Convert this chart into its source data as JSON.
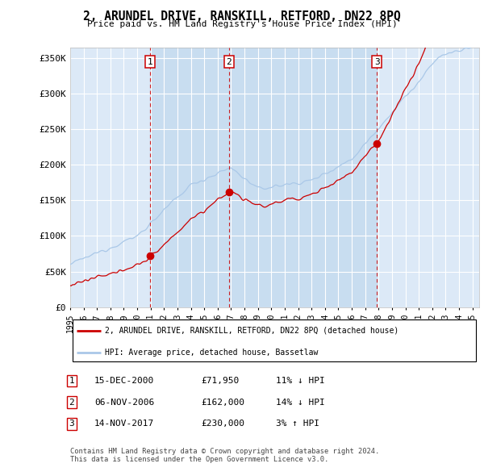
{
  "title": "2, ARUNDEL DRIVE, RANSKILL, RETFORD, DN22 8PQ",
  "subtitle": "Price paid vs. HM Land Registry's House Price Index (HPI)",
  "ylabel_ticks": [
    "£0",
    "£50K",
    "£100K",
    "£150K",
    "£200K",
    "£250K",
    "£300K",
    "£350K"
  ],
  "ytick_vals": [
    0,
    50000,
    100000,
    150000,
    200000,
    250000,
    300000,
    350000
  ],
  "ylim": [
    0,
    365000
  ],
  "xlim_start": 1995.0,
  "xlim_end": 2025.5,
  "plot_bg_color": "#dce9f7",
  "grid_color": "#ffffff",
  "hpi_color": "#aac8e8",
  "price_color": "#cc0000",
  "vline_color": "#cc0000",
  "shade_color": "#c8ddf0",
  "transactions": [
    {
      "num": 1,
      "date_decimal": 2000.96,
      "price": 71950,
      "label": "15-DEC-2000",
      "price_str": "£71,950",
      "hpi_str": "11% ↓ HPI"
    },
    {
      "num": 2,
      "date_decimal": 2006.84,
      "price": 162000,
      "label": "06-NOV-2006",
      "price_str": "£162,000",
      "hpi_str": "14% ↓ HPI"
    },
    {
      "num": 3,
      "date_decimal": 2017.87,
      "price": 230000,
      "label": "14-NOV-2017",
      "price_str": "£230,000",
      "hpi_str": "3% ↑ HPI"
    }
  ],
  "legend_label_red": "2, ARUNDEL DRIVE, RANSKILL, RETFORD, DN22 8PQ (detached house)",
  "legend_label_blue": "HPI: Average price, detached house, Bassetlaw",
  "footer": "Contains HM Land Registry data © Crown copyright and database right 2024.\nThis data is licensed under the Open Government Licence v3.0.",
  "xtick_years": [
    1995,
    1996,
    1997,
    1998,
    1999,
    2000,
    2001,
    2002,
    2003,
    2004,
    2005,
    2006,
    2007,
    2008,
    2009,
    2010,
    2011,
    2012,
    2013,
    2014,
    2015,
    2016,
    2017,
    2018,
    2019,
    2020,
    2021,
    2022,
    2023,
    2024,
    2025
  ]
}
